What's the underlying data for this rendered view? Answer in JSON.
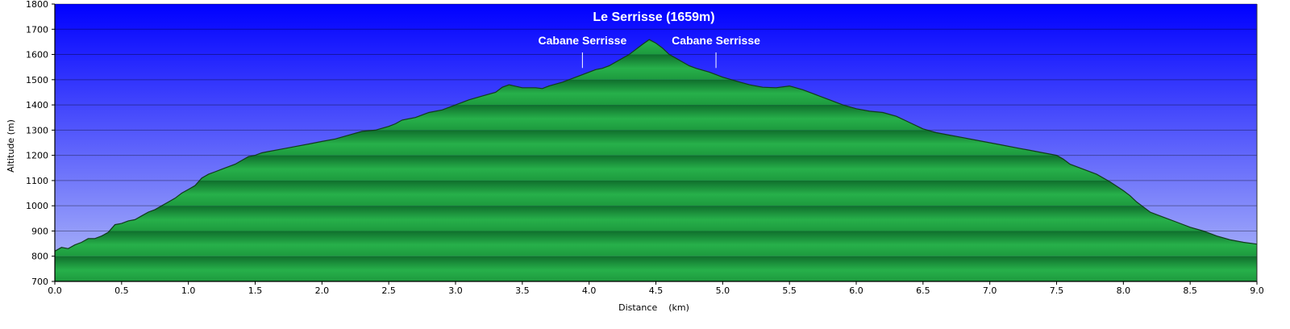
{
  "chart_data": {
    "type": "area",
    "title": "Le Serrisse (1659m)",
    "xlabel": "Distance    (km)",
    "ylabel": "Altitude (m)",
    "xlim": [
      0,
      9.0
    ],
    "ylim": [
      700,
      1800
    ],
    "xticks": [
      "0.0",
      "0.5",
      "1.0",
      "1.5",
      "2.0",
      "2.5",
      "3.0",
      "3.5",
      "4.0",
      "4.5",
      "5.0",
      "5.5",
      "6.0",
      "6.5",
      "7.0",
      "7.5",
      "8.0",
      "8.5",
      "9.0"
    ],
    "yticks": [
      "700",
      "800",
      "900",
      "1000",
      "1100",
      "1200",
      "1300",
      "1400",
      "1500",
      "1600",
      "1700",
      "1800"
    ],
    "grid": true,
    "colors": {
      "sky_top": "#0000ff",
      "sky_bottom": "#b4bef8",
      "terrain_light": "#27b04a",
      "terrain_dark": "#0f6e2c",
      "terrain_outline": "#123a1c",
      "annotation_text": "#ffffff"
    },
    "annotations": [
      {
        "label": "Cabane Serrisse",
        "x": 3.95,
        "y": 1540
      },
      {
        "label": "Cabane Serrisse",
        "x": 4.95,
        "y": 1540
      }
    ],
    "x": [
      0.0,
      0.05,
      0.1,
      0.15,
      0.2,
      0.25,
      0.3,
      0.35,
      0.4,
      0.45,
      0.5,
      0.55,
      0.6,
      0.65,
      0.7,
      0.75,
      0.8,
      0.85,
      0.9,
      0.95,
      1.0,
      1.05,
      1.1,
      1.15,
      1.2,
      1.25,
      1.3,
      1.35,
      1.4,
      1.45,
      1.5,
      1.55,
      1.6,
      1.7,
      1.8,
      1.9,
      2.0,
      2.1,
      2.2,
      2.3,
      2.4,
      2.5,
      2.55,
      2.6,
      2.7,
      2.75,
      2.8,
      2.9,
      3.0,
      3.1,
      3.2,
      3.3,
      3.35,
      3.4,
      3.5,
      3.6,
      3.65,
      3.7,
      3.8,
      3.9,
      4.0,
      4.05,
      4.1,
      4.15,
      4.2,
      4.25,
      4.3,
      4.35,
      4.4,
      4.45,
      4.5,
      4.55,
      4.6,
      4.65,
      4.7,
      4.75,
      4.8,
      4.9,
      5.0,
      5.1,
      5.2,
      5.3,
      5.4,
      5.5,
      5.6,
      5.7,
      5.8,
      5.9,
      6.0,
      6.1,
      6.2,
      6.3,
      6.4,
      6.5,
      6.6,
      6.7,
      6.8,
      6.9,
      7.0,
      7.1,
      7.2,
      7.3,
      7.4,
      7.5,
      7.55,
      7.6,
      7.7,
      7.8,
      7.9,
      8.0,
      8.05,
      8.1,
      8.15,
      8.2,
      8.3,
      8.4,
      8.5,
      8.6,
      8.7,
      8.8,
      8.9,
      9.0
    ],
    "y": [
      820,
      835,
      830,
      845,
      855,
      870,
      870,
      880,
      895,
      925,
      930,
      940,
      945,
      960,
      975,
      985,
      1000,
      1015,
      1030,
      1050,
      1065,
      1080,
      1110,
      1125,
      1135,
      1145,
      1155,
      1165,
      1180,
      1195,
      1200,
      1210,
      1215,
      1225,
      1235,
      1245,
      1255,
      1265,
      1280,
      1295,
      1300,
      1315,
      1325,
      1340,
      1350,
      1360,
      1370,
      1380,
      1400,
      1420,
      1435,
      1450,
      1470,
      1480,
      1468,
      1468,
      1465,
      1475,
      1490,
      1510,
      1530,
      1540,
      1545,
      1555,
      1570,
      1585,
      1600,
      1620,
      1640,
      1659,
      1645,
      1625,
      1600,
      1585,
      1570,
      1555,
      1545,
      1530,
      1510,
      1495,
      1480,
      1470,
      1468,
      1475,
      1460,
      1440,
      1420,
      1400,
      1385,
      1375,
      1370,
      1355,
      1330,
      1305,
      1290,
      1280,
      1270,
      1260,
      1250,
      1240,
      1230,
      1220,
      1210,
      1200,
      1185,
      1165,
      1145,
      1125,
      1095,
      1060,
      1040,
      1015,
      995,
      975,
      955,
      935,
      915,
      900,
      880,
      865,
      855,
      848
    ]
  }
}
